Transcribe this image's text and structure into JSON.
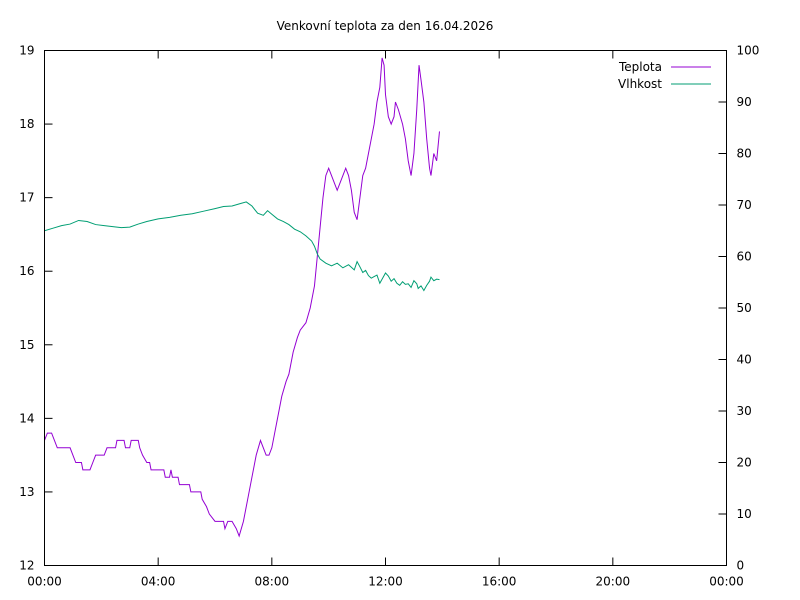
{
  "chart_data": {
    "type": "line",
    "title": "Venkovní teplota za den 16.04.2026",
    "x_ticks": [
      "00:00",
      "04:00",
      "08:00",
      "12:00",
      "16:00",
      "20:00",
      "00:00"
    ],
    "xlim_hours": [
      0,
      24
    ],
    "y_left": {
      "ticks": [
        "12",
        "13",
        "14",
        "15",
        "16",
        "17",
        "18",
        "19"
      ],
      "ylim": [
        12,
        19
      ]
    },
    "y_right": {
      "ticks": [
        "0",
        "10",
        "20",
        "30",
        "40",
        "50",
        "60",
        "70",
        "80",
        "90",
        "100"
      ],
      "ylim": [
        0,
        100
      ]
    },
    "grid": false,
    "legend_position": "top-right",
    "series": [
      {
        "name": "Teplota",
        "axis": "left",
        "color": "#9400d3",
        "points": [
          [
            0.0,
            13.7
          ],
          [
            0.1,
            13.8
          ],
          [
            0.25,
            13.8
          ],
          [
            0.35,
            13.7
          ],
          [
            0.45,
            13.6
          ],
          [
            0.9,
            13.6
          ],
          [
            1.0,
            13.5
          ],
          [
            1.1,
            13.4
          ],
          [
            1.3,
            13.4
          ],
          [
            1.35,
            13.3
          ],
          [
            1.6,
            13.3
          ],
          [
            1.7,
            13.4
          ],
          [
            1.8,
            13.5
          ],
          [
            2.1,
            13.5
          ],
          [
            2.2,
            13.6
          ],
          [
            2.5,
            13.6
          ],
          [
            2.55,
            13.7
          ],
          [
            2.8,
            13.7
          ],
          [
            2.85,
            13.6
          ],
          [
            3.0,
            13.6
          ],
          [
            3.05,
            13.7
          ],
          [
            3.3,
            13.7
          ],
          [
            3.35,
            13.6
          ],
          [
            3.45,
            13.5
          ],
          [
            3.6,
            13.4
          ],
          [
            3.7,
            13.4
          ],
          [
            3.75,
            13.3
          ],
          [
            4.2,
            13.3
          ],
          [
            4.25,
            13.2
          ],
          [
            4.4,
            13.2
          ],
          [
            4.45,
            13.3
          ],
          [
            4.5,
            13.2
          ],
          [
            4.7,
            13.2
          ],
          [
            4.75,
            13.1
          ],
          [
            5.1,
            13.1
          ],
          [
            5.15,
            13.0
          ],
          [
            5.5,
            13.0
          ],
          [
            5.55,
            12.9
          ],
          [
            5.7,
            12.8
          ],
          [
            5.8,
            12.7
          ],
          [
            6.0,
            12.6
          ],
          [
            6.3,
            12.6
          ],
          [
            6.35,
            12.5
          ],
          [
            6.45,
            12.6
          ],
          [
            6.6,
            12.6
          ],
          [
            6.75,
            12.5
          ],
          [
            6.85,
            12.4
          ],
          [
            7.0,
            12.6
          ],
          [
            7.15,
            12.9
          ],
          [
            7.3,
            13.2
          ],
          [
            7.45,
            13.5
          ],
          [
            7.6,
            13.7
          ],
          [
            7.7,
            13.6
          ],
          [
            7.8,
            13.5
          ],
          [
            7.9,
            13.5
          ],
          [
            8.0,
            13.6
          ],
          [
            8.1,
            13.8
          ],
          [
            8.2,
            14.0
          ],
          [
            8.35,
            14.3
          ],
          [
            8.5,
            14.5
          ],
          [
            8.6,
            14.6
          ],
          [
            8.75,
            14.9
          ],
          [
            8.9,
            15.1
          ],
          [
            9.0,
            15.2
          ],
          [
            9.2,
            15.3
          ],
          [
            9.35,
            15.5
          ],
          [
            9.5,
            15.8
          ],
          [
            9.6,
            16.2
          ],
          [
            9.7,
            16.6
          ],
          [
            9.8,
            17.0
          ],
          [
            9.9,
            17.3
          ],
          [
            10.0,
            17.4
          ],
          [
            10.1,
            17.3
          ],
          [
            10.2,
            17.2
          ],
          [
            10.3,
            17.1
          ],
          [
            10.4,
            17.2
          ],
          [
            10.5,
            17.3
          ],
          [
            10.6,
            17.4
          ],
          [
            10.7,
            17.3
          ],
          [
            10.8,
            17.1
          ],
          [
            10.9,
            16.8
          ],
          [
            11.0,
            16.7
          ],
          [
            11.1,
            17.0
          ],
          [
            11.2,
            17.3
          ],
          [
            11.3,
            17.4
          ],
          [
            11.4,
            17.6
          ],
          [
            11.5,
            17.8
          ],
          [
            11.6,
            18.0
          ],
          [
            11.7,
            18.3
          ],
          [
            11.8,
            18.5
          ],
          [
            11.88,
            18.9
          ],
          [
            11.95,
            18.8
          ],
          [
            12.0,
            18.4
          ],
          [
            12.1,
            18.1
          ],
          [
            12.2,
            18.0
          ],
          [
            12.3,
            18.1
          ],
          [
            12.35,
            18.3
          ],
          [
            12.45,
            18.2
          ],
          [
            12.6,
            18.0
          ],
          [
            12.7,
            17.8
          ],
          [
            12.8,
            17.5
          ],
          [
            12.9,
            17.3
          ],
          [
            13.0,
            17.6
          ],
          [
            13.1,
            18.2
          ],
          [
            13.18,
            18.8
          ],
          [
            13.25,
            18.6
          ],
          [
            13.35,
            18.3
          ],
          [
            13.45,
            17.8
          ],
          [
            13.55,
            17.4
          ],
          [
            13.6,
            17.3
          ],
          [
            13.7,
            17.6
          ],
          [
            13.8,
            17.5
          ],
          [
            13.9,
            17.9
          ]
        ]
      },
      {
        "name": "Vlhkost",
        "axis": "right",
        "color": "#009e73",
        "points": [
          [
            0.0,
            65.0
          ],
          [
            0.3,
            65.5
          ],
          [
            0.6,
            66.0
          ],
          [
            0.9,
            66.3
          ],
          [
            1.2,
            67.0
          ],
          [
            1.5,
            66.8
          ],
          [
            1.8,
            66.2
          ],
          [
            2.1,
            66.0
          ],
          [
            2.4,
            65.8
          ],
          [
            2.7,
            65.6
          ],
          [
            3.0,
            65.7
          ],
          [
            3.3,
            66.3
          ],
          [
            3.6,
            66.8
          ],
          [
            4.0,
            67.3
          ],
          [
            4.4,
            67.6
          ],
          [
            4.8,
            68.0
          ],
          [
            5.2,
            68.3
          ],
          [
            5.6,
            68.8
          ],
          [
            6.0,
            69.3
          ],
          [
            6.3,
            69.7
          ],
          [
            6.6,
            69.8
          ],
          [
            6.9,
            70.3
          ],
          [
            7.1,
            70.6
          ],
          [
            7.3,
            69.8
          ],
          [
            7.5,
            68.4
          ],
          [
            7.7,
            68.0
          ],
          [
            7.85,
            68.9
          ],
          [
            8.0,
            68.2
          ],
          [
            8.2,
            67.3
          ],
          [
            8.4,
            66.8
          ],
          [
            8.6,
            66.2
          ],
          [
            8.8,
            65.3
          ],
          [
            9.0,
            64.8
          ],
          [
            9.2,
            64.0
          ],
          [
            9.4,
            63.0
          ],
          [
            9.5,
            62.0
          ],
          [
            9.6,
            60.5
          ],
          [
            9.7,
            59.5
          ],
          [
            9.9,
            58.7
          ],
          [
            10.1,
            58.2
          ],
          [
            10.3,
            58.7
          ],
          [
            10.5,
            57.8
          ],
          [
            10.7,
            58.4
          ],
          [
            10.9,
            57.4
          ],
          [
            11.0,
            59.0
          ],
          [
            11.1,
            58.0
          ],
          [
            11.2,
            56.9
          ],
          [
            11.3,
            57.3
          ],
          [
            11.4,
            56.3
          ],
          [
            11.5,
            55.8
          ],
          [
            11.6,
            56.1
          ],
          [
            11.7,
            56.4
          ],
          [
            11.8,
            54.8
          ],
          [
            11.9,
            55.8
          ],
          [
            12.0,
            56.8
          ],
          [
            12.1,
            56.2
          ],
          [
            12.2,
            55.2
          ],
          [
            12.3,
            55.7
          ],
          [
            12.4,
            54.8
          ],
          [
            12.5,
            54.4
          ],
          [
            12.6,
            55.1
          ],
          [
            12.7,
            54.6
          ],
          [
            12.8,
            54.7
          ],
          [
            12.9,
            54.0
          ],
          [
            13.0,
            55.3
          ],
          [
            13.1,
            54.7
          ],
          [
            13.15,
            53.8
          ],
          [
            13.25,
            54.3
          ],
          [
            13.35,
            53.4
          ],
          [
            13.45,
            54.4
          ],
          [
            13.55,
            55.2
          ],
          [
            13.6,
            56.0
          ],
          [
            13.7,
            55.3
          ],
          [
            13.8,
            55.6
          ],
          [
            13.9,
            55.5
          ]
        ]
      }
    ]
  }
}
